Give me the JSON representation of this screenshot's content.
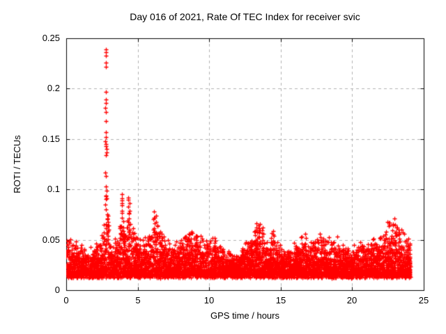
{
  "page": {
    "background": "#ffffff"
  },
  "chart_data": {
    "type": "scatter",
    "title": "Day 016 of 2021, Rate Of TEC Index for receiver svic",
    "xlabel": "GPS time / hours",
    "ylabel": "ROTI / TECUs",
    "xlim": [
      0,
      25
    ],
    "ylim": [
      0,
      0.25
    ],
    "xticks": [
      0,
      5,
      10,
      15,
      20,
      25
    ],
    "xtick_labels": [
      "0",
      "5",
      "10",
      "15",
      "20",
      "25"
    ],
    "yticks": [
      0,
      0.05,
      0.1,
      0.15,
      0.2,
      0.25
    ],
    "ytick_labels": [
      "0",
      "0.05",
      "0.1",
      "0.15",
      "0.2",
      "0.25"
    ],
    "grid": {
      "show": true,
      "color": "#b0b0b0",
      "dash": [
        4,
        4
      ]
    },
    "frame_color": "#000000",
    "tick_length": 5,
    "marker": {
      "glyph": "+",
      "color": "#ff0000",
      "size": 7,
      "stroke": 1.3
    },
    "data_extent_hours": [
      0,
      24.05
    ],
    "band": {
      "bottom": 0.012,
      "bottom_jitter": 0.006,
      "top_profile": [
        [
          0.0,
          0.05
        ],
        [
          0.3,
          0.046
        ],
        [
          0.8,
          0.04
        ],
        [
          1.3,
          0.037
        ],
        [
          1.8,
          0.038
        ],
        [
          2.2,
          0.042
        ],
        [
          2.5,
          0.05
        ],
        [
          2.65,
          0.065
        ],
        [
          2.8,
          0.08
        ],
        [
          2.95,
          0.07
        ],
        [
          3.1,
          0.05
        ],
        [
          3.4,
          0.048
        ],
        [
          3.7,
          0.06
        ],
        [
          3.9,
          0.075
        ],
        [
          4.1,
          0.058
        ],
        [
          4.35,
          0.08
        ],
        [
          4.55,
          0.06
        ],
        [
          4.8,
          0.052
        ],
        [
          5.1,
          0.046
        ],
        [
          5.4,
          0.044
        ],
        [
          5.7,
          0.05
        ],
        [
          6.0,
          0.058
        ],
        [
          6.2,
          0.072
        ],
        [
          6.45,
          0.058
        ],
        [
          6.8,
          0.046
        ],
        [
          7.2,
          0.042
        ],
        [
          7.6,
          0.044
        ],
        [
          8.0,
          0.046
        ],
        [
          8.4,
          0.052
        ],
        [
          8.8,
          0.058
        ],
        [
          9.1,
          0.046
        ],
        [
          9.5,
          0.05
        ],
        [
          9.9,
          0.046
        ],
        [
          10.2,
          0.05
        ],
        [
          10.6,
          0.04
        ],
        [
          11.0,
          0.037
        ],
        [
          11.5,
          0.034
        ],
        [
          12.0,
          0.034
        ],
        [
          12.5,
          0.04
        ],
        [
          12.9,
          0.05
        ],
        [
          13.3,
          0.063
        ],
        [
          13.6,
          0.058
        ],
        [
          14.0,
          0.044
        ],
        [
          14.45,
          0.056
        ],
        [
          14.8,
          0.042
        ],
        [
          15.2,
          0.038
        ],
        [
          15.7,
          0.04
        ],
        [
          16.1,
          0.042
        ],
        [
          16.5,
          0.054
        ],
        [
          16.9,
          0.043
        ],
        [
          17.3,
          0.044
        ],
        [
          17.7,
          0.047
        ],
        [
          18.1,
          0.046
        ],
        [
          18.5,
          0.044
        ],
        [
          18.9,
          0.047
        ],
        [
          19.3,
          0.041
        ],
        [
          19.7,
          0.039
        ],
        [
          20.1,
          0.04
        ],
        [
          20.5,
          0.042
        ],
        [
          21.0,
          0.045
        ],
        [
          21.5,
          0.047
        ],
        [
          22.0,
          0.046
        ],
        [
          22.4,
          0.052
        ],
        [
          22.8,
          0.062
        ],
        [
          23.1,
          0.063
        ],
        [
          23.4,
          0.055
        ],
        [
          23.7,
          0.049
        ],
        [
          24.05,
          0.045
        ]
      ]
    },
    "outliers": [
      [
        2.78,
        0.239
      ],
      [
        2.78,
        0.236
      ],
      [
        2.8,
        0.233
      ],
      [
        2.78,
        0.226
      ],
      [
        2.8,
        0.222
      ],
      [
        2.78,
        0.197
      ],
      [
        2.78,
        0.189
      ],
      [
        2.76,
        0.186
      ],
      [
        2.74,
        0.181
      ],
      [
        2.8,
        0.177
      ],
      [
        2.78,
        0.168
      ],
      [
        2.8,
        0.157
      ],
      [
        2.78,
        0.152
      ],
      [
        2.74,
        0.148
      ],
      [
        2.8,
        0.145
      ],
      [
        2.76,
        0.143
      ],
      [
        2.82,
        0.14
      ],
      [
        2.84,
        0.137
      ],
      [
        2.78,
        0.134
      ],
      [
        2.74,
        0.117
      ],
      [
        2.8,
        0.113
      ],
      [
        2.78,
        0.103
      ],
      [
        2.82,
        0.099
      ],
      [
        2.84,
        0.091
      ],
      [
        2.72,
        0.085
      ],
      [
        2.76,
        0.08
      ],
      [
        2.88,
        0.075
      ],
      [
        2.86,
        0.071
      ],
      [
        3.88,
        0.095
      ],
      [
        3.92,
        0.091
      ],
      [
        3.88,
        0.089
      ],
      [
        3.9,
        0.086
      ],
      [
        3.88,
        0.084
      ],
      [
        3.92,
        0.079
      ],
      [
        3.9,
        0.077
      ],
      [
        3.88,
        0.072
      ],
      [
        4.35,
        0.09
      ],
      [
        4.42,
        0.086
      ],
      [
        4.35,
        0.083
      ],
      [
        4.42,
        0.079
      ],
      [
        4.38,
        0.076
      ],
      [
        4.4,
        0.071
      ],
      [
        6.15,
        0.078
      ],
      [
        6.3,
        0.074
      ],
      [
        6.15,
        0.072
      ],
      [
        6.3,
        0.068
      ],
      [
        6.2,
        0.066
      ],
      [
        8.75,
        0.058
      ],
      [
        10.25,
        0.052
      ],
      [
        13.3,
        0.066
      ],
      [
        13.45,
        0.064
      ],
      [
        13.3,
        0.062
      ],
      [
        13.45,
        0.058
      ],
      [
        14.45,
        0.059
      ],
      [
        14.48,
        0.055
      ],
      [
        16.7,
        0.056
      ],
      [
        16.75,
        0.052
      ],
      [
        22.47,
        0.068
      ],
      [
        22.85,
        0.064
      ],
      [
        23.0,
        0.065
      ],
      [
        23.1,
        0.062
      ],
      [
        23.25,
        0.06
      ]
    ],
    "synth": {
      "points": 6500,
      "seed": 42,
      "power": 2.2,
      "epoch_hours": 0.0083333,
      "column_variation": 0.6
    }
  }
}
